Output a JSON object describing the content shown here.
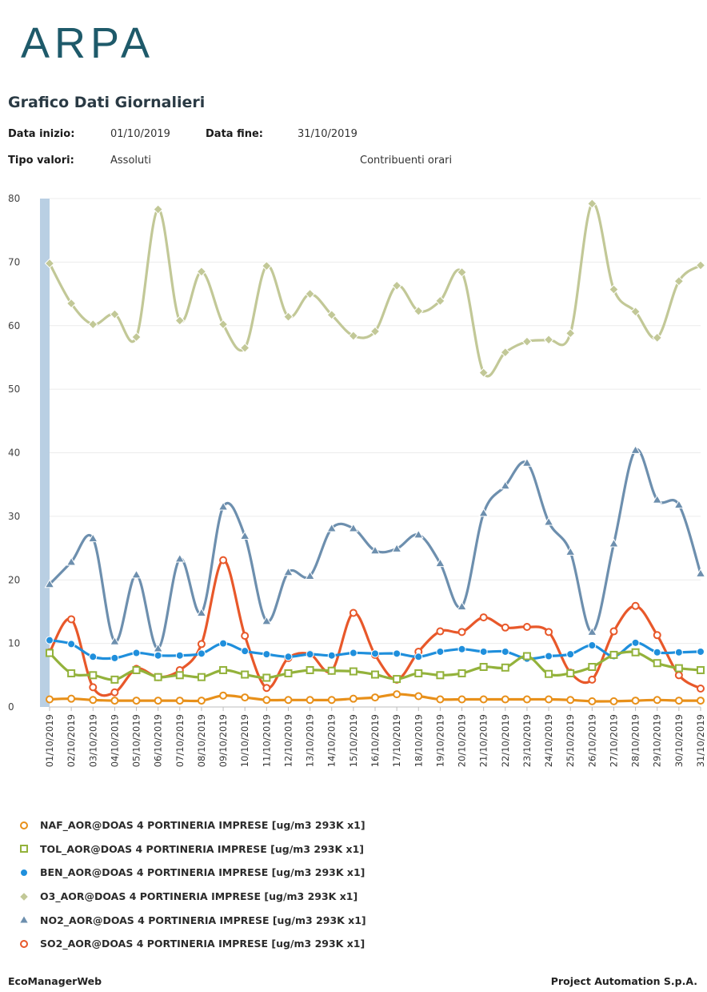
{
  "logo_text": "ARPA",
  "title": "Grafico Dati Giornalieri",
  "info": {
    "start_label": "Data inizio:",
    "start_value": "01/10/2019",
    "end_label": "Data fine:",
    "end_value": "31/10/2019",
    "type_label": "Tipo valori:",
    "type_value": "Assoluti",
    "contrib": "Contribuenti orari"
  },
  "footer": {
    "left": "EcoManagerWeb",
    "right": "Project Automation S.p.A."
  },
  "colors": {
    "axis_bar": "#b9cfe3",
    "grid": "#ececec",
    "logo": "#1e5a6a"
  },
  "chart_data": {
    "type": "line",
    "ylim": [
      0,
      80
    ],
    "yticks": [
      0,
      10,
      20,
      30,
      40,
      50,
      60,
      70,
      80
    ],
    "grid": "horizontal",
    "legend_position": "bottom",
    "x": [
      "01/10/2019",
      "02/10/2019",
      "03/10/2019",
      "04/10/2019",
      "05/10/2019",
      "06/10/2019",
      "07/10/2019",
      "08/10/2019",
      "09/10/2019",
      "10/10/2019",
      "11/10/2019",
      "12/10/2019",
      "13/10/2019",
      "14/10/2019",
      "15/10/2019",
      "16/10/2019",
      "17/10/2019",
      "18/10/2019",
      "19/10/2019",
      "20/10/2019",
      "21/10/2019",
      "22/10/2019",
      "23/10/2019",
      "24/10/2019",
      "25/10/2019",
      "26/10/2019",
      "27/10/2019",
      "28/10/2019",
      "29/10/2019",
      "30/10/2019",
      "31/10/2019"
    ],
    "series": [
      {
        "name": "NAF_AOR@DOAS 4 PORTINERIA IMPRESE [ug/m3 293K x1]",
        "color": "#e8901a",
        "marker": "circle-open",
        "values": [
          1.2,
          1.3,
          1.1,
          1.0,
          1.0,
          1.0,
          1.0,
          1.0,
          1.8,
          1.5,
          1.1,
          1.1,
          1.1,
          1.1,
          1.3,
          1.5,
          2.0,
          1.7,
          1.2,
          1.2,
          1.2,
          1.2,
          1.2,
          1.2,
          1.1,
          0.9,
          0.9,
          1.0,
          1.1,
          1.0,
          1.0
        ]
      },
      {
        "name": "TOL_AOR@DOAS 4 PORTINERIA IMPRESE [ug/m3 293K x1]",
        "color": "#93b23b",
        "marker": "square-open",
        "values": [
          8.5,
          5.3,
          5.0,
          4.3,
          5.8,
          4.7,
          5.0,
          4.7,
          5.8,
          5.1,
          4.6,
          5.3,
          5.8,
          5.7,
          5.6,
          5.1,
          4.4,
          5.3,
          5.0,
          5.3,
          6.3,
          6.2,
          8.0,
          5.2,
          5.3,
          6.3,
          8.2,
          8.6,
          6.9,
          6.1,
          5.8
        ]
      },
      {
        "name": "BEN_AOR@DOAS 4 PORTINERIA IMPRESE [ug/m3 293K x1]",
        "color": "#1f8fdc",
        "marker": "circle-filled",
        "values": [
          10.5,
          9.9,
          7.9,
          7.7,
          8.5,
          8.1,
          8.1,
          8.4,
          10.0,
          8.8,
          8.3,
          7.9,
          8.3,
          8.1,
          8.5,
          8.4,
          8.4,
          7.9,
          8.7,
          9.1,
          8.7,
          8.7,
          7.6,
          8.0,
          8.3,
          9.7,
          8.0,
          10.1,
          8.6,
          8.6,
          8.7
        ]
      },
      {
        "name": "O3_AOR@DOAS 4 PORTINERIA IMPRESE [ug/m3 293K x1]",
        "color": "#c2c897",
        "marker": "diamond-filled",
        "values": [
          69.8,
          63.5,
          60.2,
          61.8,
          58.2,
          78.3,
          60.8,
          68.5,
          60.2,
          56.5,
          69.4,
          61.4,
          65.0,
          61.7,
          58.4,
          59.1,
          66.3,
          62.3,
          63.9,
          68.4,
          52.6,
          55.8,
          57.5,
          57.8,
          58.8,
          79.2,
          65.7,
          62.2,
          58.1,
          67.0,
          69.5
        ]
      },
      {
        "name": "NO2_AOR@DOAS 4 PORTINERIA IMPRESE [ug/m3 293K x1]",
        "color": "#6d8fae",
        "marker": "triangle-filled",
        "values": [
          19.3,
          22.8,
          26.5,
          10.3,
          20.8,
          9.2,
          23.3,
          14.8,
          31.5,
          26.9,
          13.5,
          21.2,
          20.6,
          28.1,
          28.1,
          24.6,
          24.9,
          27.1,
          22.6,
          15.8,
          30.5,
          34.8,
          38.4,
          29.1,
          24.4,
          11.8,
          25.7,
          40.4,
          32.6,
          31.8,
          21.0
        ]
      },
      {
        "name": "SO2_AOR@DOAS 4 PORTINERIA IMPRESE [ug/m3 293K x1]",
        "color": "#e8582a",
        "marker": "circle-open",
        "values": [
          8.6,
          13.8,
          3.1,
          2.3,
          6.0,
          4.7,
          5.8,
          9.9,
          23.1,
          11.2,
          3.0,
          7.7,
          8.3,
          5.7,
          14.8,
          8.2,
          4.3,
          8.7,
          11.9,
          11.8,
          14.1,
          12.5,
          12.6,
          11.8,
          5.4,
          4.3,
          11.9,
          15.9,
          11.3,
          5.0,
          2.9
        ]
      }
    ]
  }
}
